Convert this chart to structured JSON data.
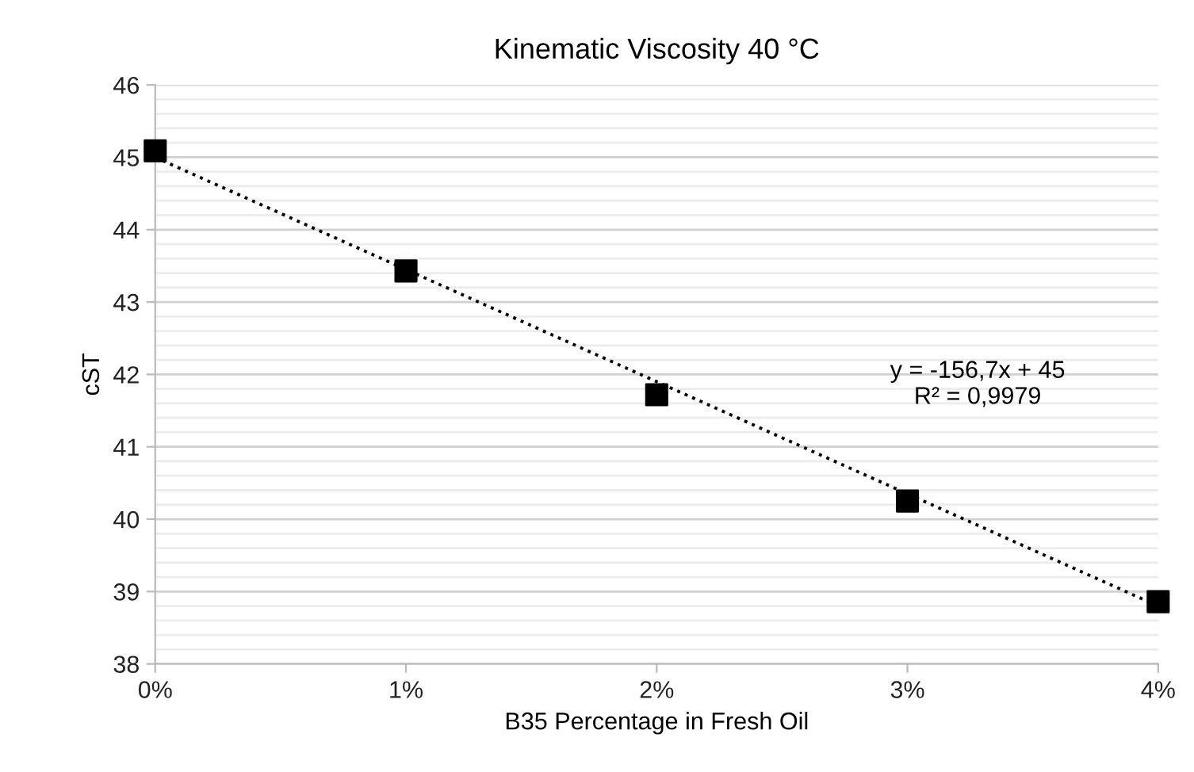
{
  "chart_data": {
    "type": "scatter",
    "title": "Kinematic Viscosity 40 °C",
    "xlabel": "B35 Percentage in Fresh Oil",
    "ylabel": "cST",
    "x": [
      0,
      0.01,
      0.02,
      0.03,
      0.04
    ],
    "series": [
      {
        "color": "#000000",
        "marker": "square",
        "values": [
          45.09,
          43.43,
          41.72,
          40.25,
          38.86
        ]
      },
      {
        "type": "line",
        "color": "#000000",
        "marker": "none",
        "line_style": "dotted",
        "x": [
          0,
          0.04
        ],
        "values": [
          45.0,
          38.8
        ]
      }
    ],
    "xlim": [
      0,
      0.04
    ],
    "xticks": [
      {
        "value": 0,
        "label": "0%"
      },
      {
        "value": 0.01,
        "label": "1%"
      },
      {
        "value": 0.02,
        "label": "2%"
      },
      {
        "value": 0.03,
        "label": "3%"
      },
      {
        "value": 0.04,
        "label": "4%"
      }
    ],
    "ylim": [
      38,
      46
    ],
    "yticks": [
      38,
      {
        "value": 38.2,
        "label": null
      },
      {
        "value": 38.4,
        "label": null
      },
      {
        "value": 38.6,
        "label": null
      },
      {
        "value": 38.8,
        "label": null
      },
      39,
      {
        "value": 39.2,
        "label": null
      },
      {
        "value": 39.4,
        "label": null
      },
      {
        "value": 39.6,
        "label": null
      },
      {
        "value": 39.8,
        "label": null
      },
      40,
      {
        "value": 40.2,
        "label": null
      },
      {
        "value": 40.4,
        "label": null
      },
      {
        "value": 40.6,
        "label": null
      },
      {
        "value": 40.8,
        "label": null
      },
      41,
      {
        "value": 41.2,
        "label": null
      },
      {
        "value": 41.4,
        "label": null
      },
      {
        "value": 41.6,
        "label": null
      },
      {
        "value": 41.8,
        "label": null
      },
      42,
      {
        "value": 42.2,
        "label": null
      },
      {
        "value": 42.4,
        "label": null
      },
      {
        "value": 42.6,
        "label": null
      },
      {
        "value": 42.8,
        "label": null
      },
      43,
      {
        "value": 43.2,
        "label": null
      },
      {
        "value": 43.4,
        "label": null
      },
      {
        "value": 43.6,
        "label": null
      },
      {
        "value": 43.8,
        "label": null
      },
      44,
      {
        "value": 44.2,
        "label": null
      },
      {
        "value": 44.4,
        "label": null
      },
      {
        "value": 44.6,
        "label": null
      },
      {
        "value": 44.8,
        "label": null
      },
      45,
      {
        "value": 45.2,
        "label": null
      },
      {
        "value": 45.4,
        "label": null
      },
      {
        "value": 45.6,
        "label": null
      },
      {
        "value": 45.8,
        "label": null
      },
      46
    ],
    "grid": "y",
    "annotations": [
      "y = -156,7x + 45",
      "R² = 0,9979"
    ]
  }
}
